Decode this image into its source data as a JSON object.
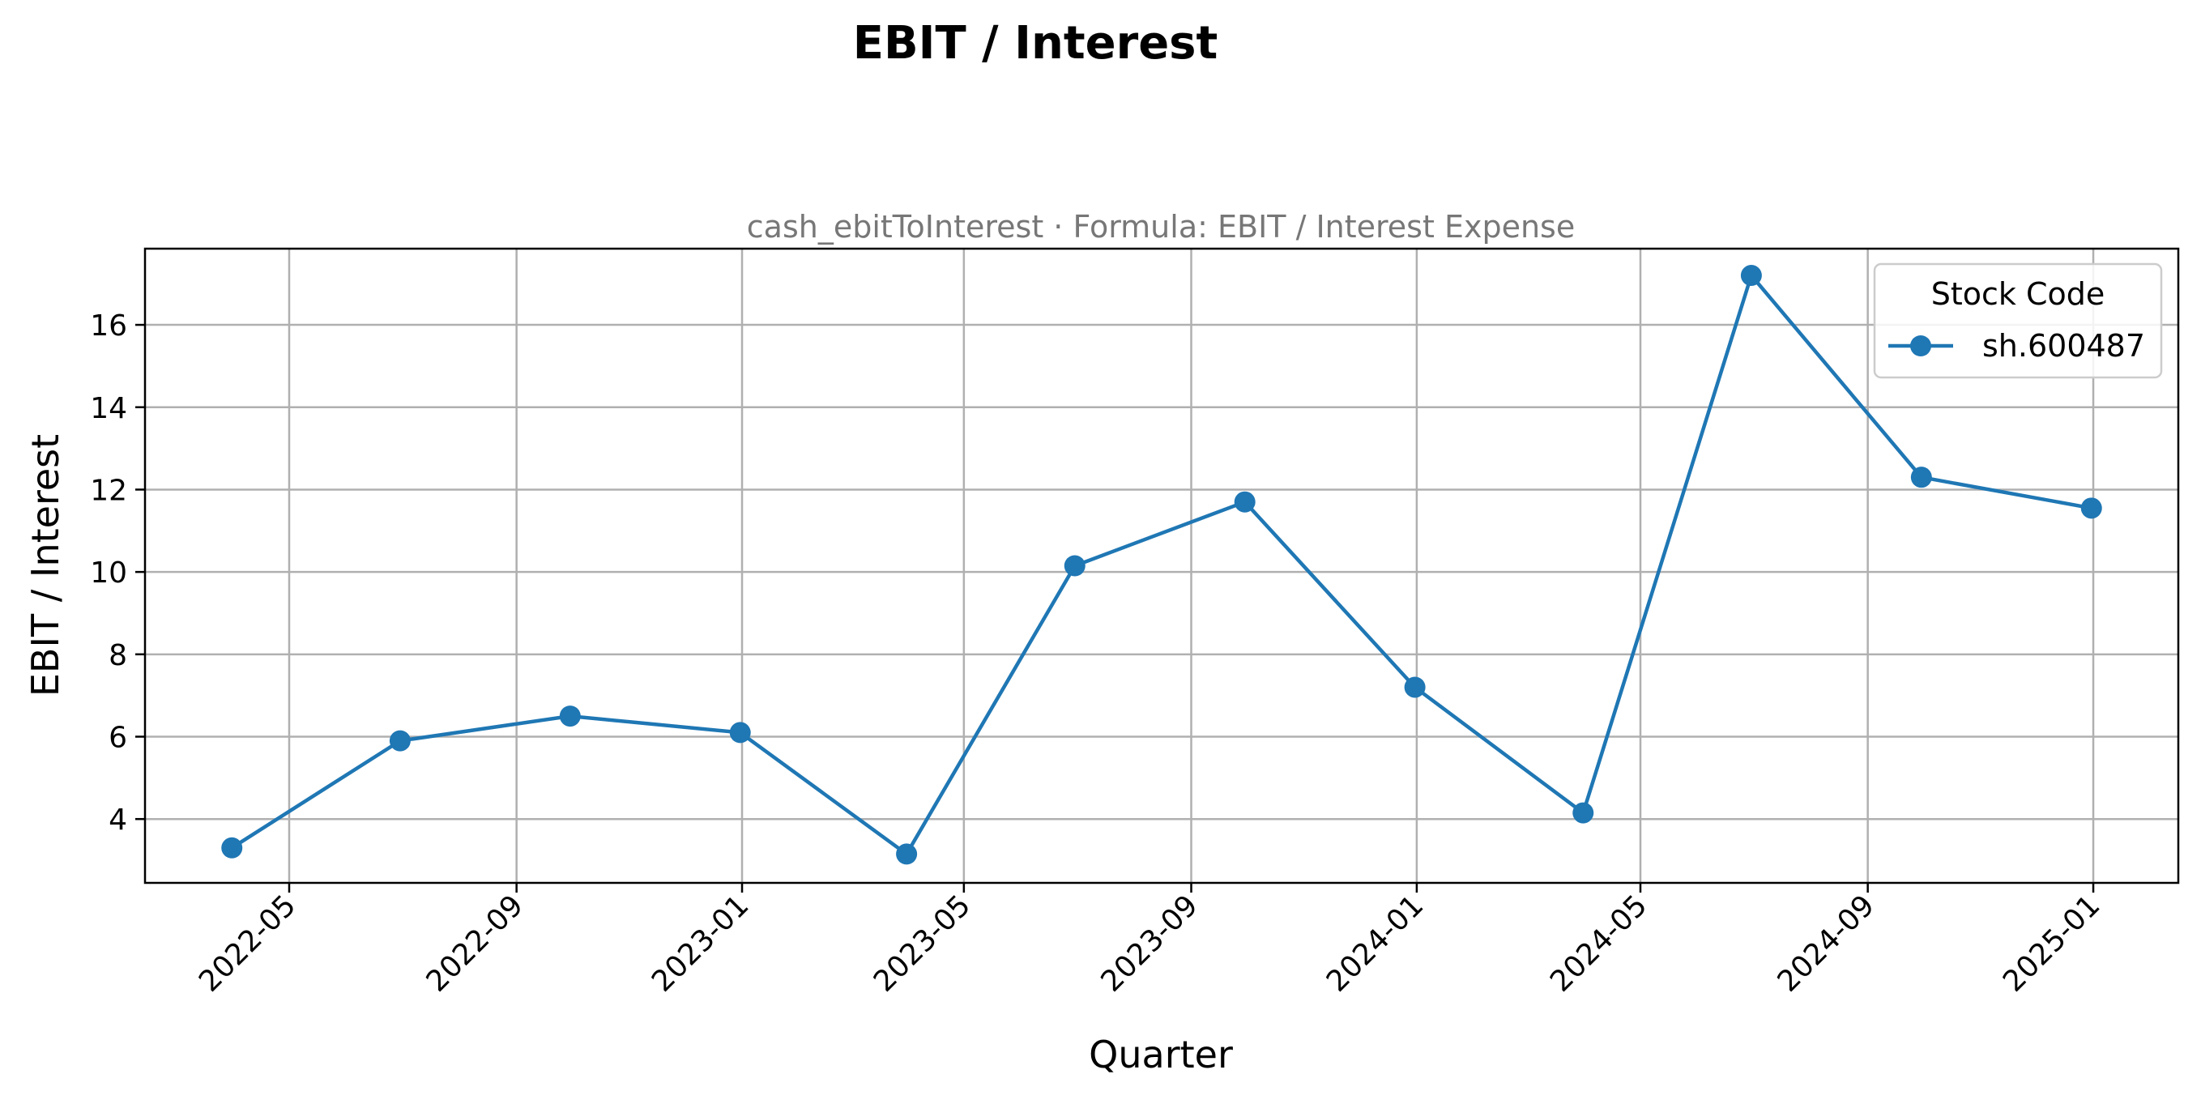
{
  "chart_data": {
    "type": "line",
    "title": "EBIT / Interest",
    "subtitle": "cash_ebitToInterest · Formula: EBIT / Interest Expense",
    "xlabel": "Quarter",
    "ylabel": "EBIT / Interest",
    "x_ticks": [
      "2022-05",
      "2022-09",
      "2023-01",
      "2023-05",
      "2023-09",
      "2024-01",
      "2024-05",
      "2024-09",
      "2025-01"
    ],
    "y_ticks": [
      4,
      6,
      8,
      10,
      12,
      14,
      16
    ],
    "xlim": [
      "2022-02-12",
      "2025-02-16"
    ],
    "ylim": [
      2.45,
      17.85
    ],
    "grid": true,
    "legend": {
      "title": "Stock Code",
      "placement": "top-right"
    },
    "series": [
      {
        "name": "sh.600487",
        "color": "#1f77b4",
        "x": [
          "2022-03-31",
          "2022-06-30",
          "2022-09-30",
          "2022-12-31",
          "2023-03-31",
          "2023-06-30",
          "2023-09-30",
          "2023-12-31",
          "2024-03-31",
          "2024-06-30",
          "2024-09-30",
          "2024-12-31"
        ],
        "y": [
          3.3,
          5.9,
          6.5,
          6.1,
          3.15,
          10.15,
          11.7,
          7.2,
          4.15,
          17.2,
          12.3,
          11.55
        ]
      }
    ]
  }
}
